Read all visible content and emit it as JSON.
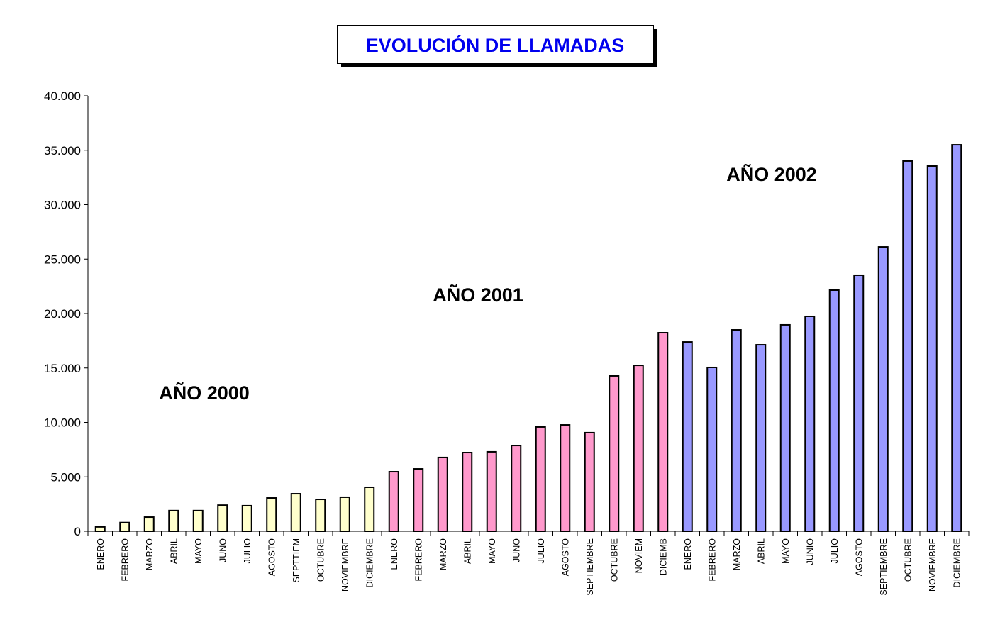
{
  "chart_data": {
    "type": "bar",
    "title": "EVOLUCIÓN DE  LLAMADAS",
    "categories": [
      "ENERO",
      "FEBRERO",
      "MARZO",
      "ABRIL",
      "MAYO",
      "JUNO",
      "JULIO",
      "AGOSTO",
      "SEPTTIEM",
      "OCTUBRE",
      "NOVIEMBRE",
      "DICIEMBRE",
      "ENERO",
      "FEBRERO",
      "MARZO",
      "ABRIL",
      "MAYO",
      "JUNO",
      "JULIO",
      "AGOSTO",
      "SEPTIEMBRE",
      "OCTUBRE",
      "NOVIEM",
      "DICIEMB",
      "ENERO",
      "FEBRERO",
      "MARZO",
      "ABRIL",
      "MAYO",
      "JUNIO",
      "JULIO",
      "AGOSTO",
      "SEPTIEMBRE",
      "OCTUBRE",
      "NOVIEMBRE",
      "DICIEMBRE"
    ],
    "values": [
      400,
      800,
      1300,
      1900,
      1900,
      2400,
      2350,
      3060,
      3450,
      2930,
      3130,
      4040,
      5470,
      5730,
      6780,
      7230,
      7300,
      7880,
      9580,
      9770,
      9060,
      14270,
      15240,
      18240,
      17390,
      15050,
      18500,
      17130,
      18960,
      19740,
      22150,
      23520,
      26120,
      34010,
      33550,
      35500
    ],
    "colors": [
      "#ffffcc",
      "#ffffcc",
      "#ffffcc",
      "#ffffcc",
      "#ffffcc",
      "#ffffcc",
      "#ffffcc",
      "#ffffcc",
      "#ffffcc",
      "#ffffcc",
      "#ffffcc",
      "#ffffcc",
      "#ff99cc",
      "#ff99cc",
      "#ff99cc",
      "#ff99cc",
      "#ff99cc",
      "#ff99cc",
      "#ff99cc",
      "#ff99cc",
      "#ff99cc",
      "#ff99cc",
      "#ff99cc",
      "#ff99cc",
      "#9999ff",
      "#9999ff",
      "#9999ff",
      "#9999ff",
      "#9999ff",
      "#9999ff",
      "#9999ff",
      "#9999ff",
      "#9999ff",
      "#9999ff",
      "#9999ff",
      "#9999ff"
    ],
    "ylim": [
      0,
      40000
    ],
    "yticks": [
      0,
      {
        "value": 5000,
        "label": "5.000"
      },
      {
        "value": 10000,
        "label": "10.000"
      },
      {
        "value": 15000,
        "label": "15.000"
      },
      {
        "value": 20000,
        "label": "20.000"
      },
      {
        "value": 25000,
        "label": "25.000"
      },
      {
        "value": 30000,
        "label": "30.000"
      },
      {
        "value": 35000,
        "label": "35.000"
      },
      {
        "value": 40000,
        "label": "40.000"
      }
    ],
    "annotations": [
      "AÑO 2000",
      "AÑO 2001",
      "AÑO 2002"
    ],
    "grid": false
  }
}
